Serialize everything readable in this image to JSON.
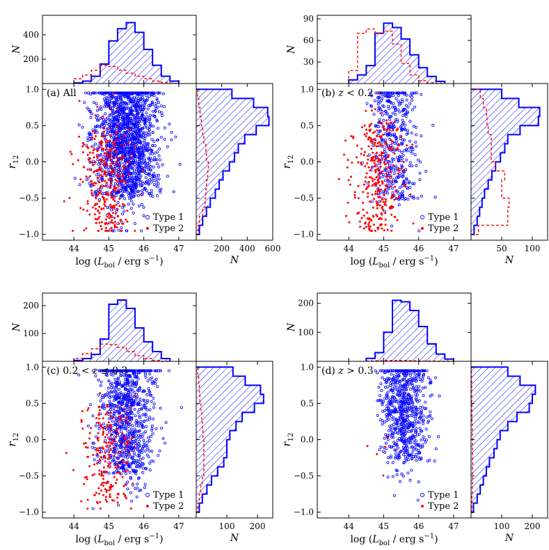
{
  "figure": {
    "shared": {
      "x_axis_label": "log (L_bol / erg s^-1)",
      "x_label_parts": {
        "pre": "log (",
        "L": "L",
        "sub": "bol",
        "mid": " / erg s",
        "sup": "−1",
        "post": ")"
      },
      "y_axis_label": "r_12",
      "y_label_parts": {
        "r": "r",
        "sub": "12"
      },
      "count_label": "N",
      "legend": [
        {
          "label": "Type 1",
          "marker": "open-circle",
          "color": "#0000ff"
        },
        {
          "label": "Type 2",
          "marker": "filled-dot",
          "color": "#ff0000"
        }
      ],
      "colors": {
        "type1": "#0000ff",
        "type2": "#ff0000"
      }
    }
  },
  "chart_data": [
    {
      "panel_id": "a",
      "type": "scatter",
      "title_parts": {
        "pre": "(a) All",
        "z": "",
        "post": ""
      },
      "title": "(a) All",
      "xlim": [
        43.1,
        47.5
      ],
      "ylim": [
        -1.08,
        1.08
      ],
      "xticks": [
        44,
        45,
        46,
        47
      ],
      "yticks": [
        -1.0,
        -0.5,
        0.0,
        0.5,
        1.0
      ],
      "ytick_labels": [
        "−1.0",
        "−0.5",
        "0.0",
        "0.5",
        "1.0"
      ],
      "top_hist": {
        "ylim": [
          0,
          560
        ],
        "ticks": [
          200,
          400
        ],
        "bin_edges": [
          44.0,
          44.25,
          44.5,
          44.75,
          45.0,
          45.25,
          45.5,
          45.75,
          46.0,
          46.25,
          46.5,
          46.75,
          47.0
        ],
        "type1": [
          5,
          20,
          60,
          160,
          350,
          450,
          500,
          420,
          280,
          150,
          60,
          20
        ],
        "type2": [
          40,
          70,
          110,
          150,
          140,
          110,
          85,
          60,
          40,
          20,
          8,
          2
        ]
      },
      "right_hist": {
        "xlim": [
          0,
          600
        ],
        "ticks": [
          200,
          400,
          600
        ],
        "bin_edges": [
          -1.0,
          -0.875,
          -0.75,
          -0.625,
          -0.5,
          -0.375,
          -0.25,
          -0.125,
          0.0,
          0.125,
          0.25,
          0.375,
          0.5,
          0.625,
          0.75,
          0.875,
          1.0
        ],
        "type1": [
          25,
          50,
          80,
          110,
          150,
          180,
          210,
          260,
          300,
          330,
          380,
          470,
          570,
          560,
          450,
          280
        ],
        "type2": [
          15,
          25,
          50,
          70,
          75,
          80,
          90,
          95,
          80,
          75,
          60,
          50,
          40,
          30,
          20,
          10
        ]
      },
      "scatter": {
        "type1": {
          "count": 1650,
          "x_mean": 45.5,
          "x_sd": 0.45,
          "y_center": 0.35,
          "y_spread": 0.55
        },
        "type2": {
          "count": 330,
          "x_mean": 44.9,
          "x_sd": 0.35,
          "y_center": -0.25,
          "y_spread": 0.45
        }
      }
    },
    {
      "panel_id": "b",
      "type": "scatter",
      "title_parts": {
        "pre": "(b) ",
        "z": "z",
        "post": " < 0.2"
      },
      "title": "(b) z < 0.2",
      "xlim": [
        43.1,
        47.5
      ],
      "ylim": [
        -1.08,
        1.08
      ],
      "xticks": [
        44,
        45,
        46,
        47
      ],
      "yticks": [
        -1.0,
        -0.5,
        0.0,
        0.5,
        1.0
      ],
      "ytick_labels": [
        "−1.0",
        "−0.5",
        "0.0",
        "0.5",
        "1.0"
      ],
      "top_hist": {
        "ylim": [
          0,
          95
        ],
        "ticks": [
          30,
          60,
          90
        ],
        "bin_edges": [
          44.0,
          44.25,
          44.5,
          44.75,
          45.0,
          45.25,
          45.5,
          45.75,
          46.0,
          46.25,
          46.5,
          46.75
        ],
        "type1": [
          5,
          12,
          25,
          70,
          84,
          78,
          62,
          40,
          22,
          10,
          3
        ],
        "type2": [
          18,
          70,
          76,
          70,
          73,
          55,
          28,
          12,
          4,
          1,
          0
        ]
      },
      "right_hist": {
        "xlim": [
          0,
          125
        ],
        "ticks": [
          50,
          100
        ],
        "bin_edges": [
          -1.0,
          -0.875,
          -0.75,
          -0.625,
          -0.5,
          -0.375,
          -0.25,
          -0.125,
          0.0,
          0.125,
          0.25,
          0.375,
          0.5,
          0.625,
          0.75,
          0.875,
          1.0
        ],
        "type1": [
          5,
          10,
          14,
          18,
          22,
          28,
          34,
          40,
          48,
          55,
          60,
          80,
          110,
          112,
          78,
          50
        ],
        "type2": [
          12,
          60,
          60,
          62,
          50,
          50,
          55,
          40,
          33,
          33,
          33,
          28,
          26,
          25,
          20,
          15
        ]
      },
      "scatter": {
        "type1": {
          "count": 430,
          "x_mean": 45.3,
          "x_sd": 0.35,
          "y_center": 0.3,
          "y_spread": 0.55
        },
        "type2": {
          "count": 330,
          "x_mean": 44.8,
          "x_sd": 0.35,
          "y_center": -0.2,
          "y_spread": 0.5
        }
      }
    },
    {
      "panel_id": "c",
      "type": "scatter",
      "title_parts": {
        "pre": "(c) 0.2 < ",
        "z": "z",
        "post": " ≤ 0.3"
      },
      "title": "(c) 0.2 < z ≤ 0.3",
      "xlim": [
        43.1,
        47.5
      ],
      "ylim": [
        -1.08,
        1.08
      ],
      "xticks": [
        44,
        45,
        46,
        47
      ],
      "yticks": [
        -1.0,
        -0.5,
        0.0,
        0.5,
        1.0
      ],
      "ytick_labels": [
        "−1.0",
        "−0.5",
        "0.0",
        "0.5",
        "1.0"
      ],
      "top_hist": {
        "ylim": [
          0,
          245
        ],
        "ticks": [
          100,
          200
        ],
        "bin_edges": [
          44.0,
          44.25,
          44.5,
          44.75,
          45.0,
          45.25,
          45.5,
          45.75,
          46.0,
          46.25,
          46.5,
          46.75
        ],
        "type1": [
          3,
          10,
          25,
          80,
          205,
          220,
          190,
          120,
          70,
          35,
          10
        ],
        "type2": [
          10,
          28,
          45,
          62,
          60,
          50,
          35,
          20,
          10,
          3,
          0
        ]
      },
      "right_hist": {
        "xlim": [
          0,
          250
        ],
        "ticks": [
          100,
          200
        ],
        "bin_edges": [
          -1.0,
          -0.875,
          -0.75,
          -0.625,
          -0.5,
          -0.375,
          -0.25,
          -0.125,
          0.0,
          0.125,
          0.25,
          0.375,
          0.5,
          0.625,
          0.75,
          0.875,
          1.0
        ],
        "type1": [
          10,
          20,
          35,
          50,
          70,
          90,
          100,
          100,
          110,
          130,
          150,
          190,
          220,
          210,
          160,
          120
        ],
        "type2": [
          5,
          10,
          15,
          20,
          25,
          25,
          25,
          25,
          22,
          20,
          18,
          15,
          12,
          10,
          8,
          5
        ]
      },
      "scatter": {
        "type1": {
          "count": 900,
          "x_mean": 45.5,
          "x_sd": 0.4,
          "y_center": 0.35,
          "y_spread": 0.55
        },
        "type2": {
          "count": 220,
          "x_mean": 45.0,
          "x_sd": 0.35,
          "y_center": -0.2,
          "y_spread": 0.45
        }
      }
    },
    {
      "panel_id": "d",
      "type": "scatter",
      "title_parts": {
        "pre": "(d) ",
        "z": "z",
        "post": " > 0.3"
      },
      "title": "(d) z > 0.3",
      "xlim": [
        43.1,
        47.5
      ],
      "ylim": [
        -1.08,
        1.08
      ],
      "xticks": [
        44,
        45,
        46,
        47
      ],
      "yticks": [
        -1.0,
        -0.5,
        0.0,
        0.5,
        1.0
      ],
      "ytick_labels": [
        "−1.0",
        "−0.5",
        "0.0",
        "0.5",
        "1.0"
      ],
      "top_hist": {
        "ylim": [
          0,
          235
        ],
        "ticks": [
          100,
          200
        ],
        "bin_edges": [
          44.5,
          44.75,
          45.0,
          45.25,
          45.5,
          45.75,
          46.0,
          46.25,
          46.5,
          46.75,
          47.0
        ],
        "type1": [
          10,
          30,
          100,
          210,
          205,
          175,
          120,
          60,
          25,
          8
        ],
        "type2": [
          1,
          2,
          3,
          3,
          3,
          2,
          1,
          1,
          0,
          0
        ]
      },
      "right_hist": {
        "xlim": [
          0,
          250
        ],
        "ticks": [
          100,
          200
        ],
        "bin_edges": [
          -1.0,
          -0.875,
          -0.75,
          -0.625,
          -0.5,
          -0.375,
          -0.25,
          -0.125,
          0.0,
          0.125,
          0.25,
          0.375,
          0.5,
          0.625,
          0.75,
          0.875,
          1.0
        ],
        "type1": [
          8,
          20,
          30,
          40,
          50,
          60,
          75,
          85,
          95,
          120,
          150,
          190,
          200,
          210,
          160,
          120
        ],
        "type2": [
          2,
          3,
          4,
          5,
          5,
          5,
          5,
          5,
          4,
          4,
          3,
          3,
          2,
          2,
          2,
          1
        ]
      },
      "scatter": {
        "type1": {
          "count": 700,
          "x_mean": 45.6,
          "x_sd": 0.35,
          "y_center": 0.4,
          "y_spread": 0.45
        },
        "type2": {
          "count": 5,
          "x_mean": 45.0,
          "x_sd": 0.3,
          "y_center": -0.4,
          "y_spread": 0.3
        }
      }
    }
  ]
}
